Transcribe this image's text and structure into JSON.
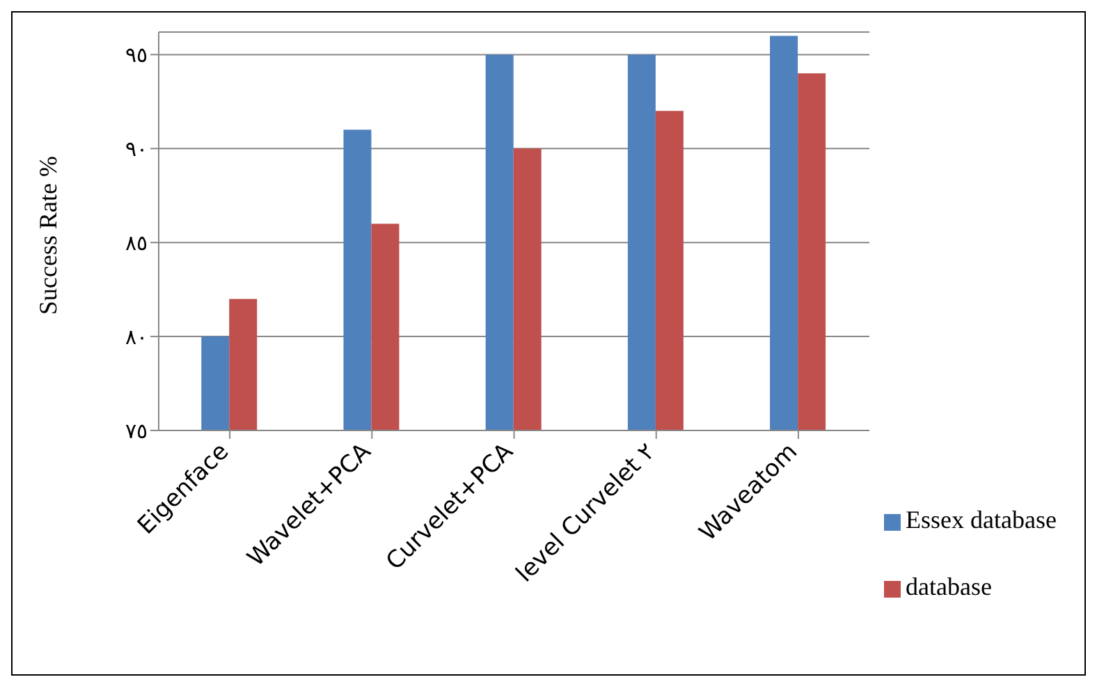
{
  "chart_data": {
    "type": "bar",
    "ylabel": "Success Rate %",
    "categories": [
      "Eigenface",
      "Wavelet+PCA",
      "Curvelet+PCA",
      "level Curvelet ٢",
      "Waveatom"
    ],
    "series": [
      {
        "name": "Essex database",
        "color": "#4f81bd",
        "values": [
          80,
          91,
          95,
          95,
          96
        ]
      },
      {
        "name": "database",
        "color": "#c0504d",
        "values": [
          82,
          86,
          90,
          92,
          94
        ]
      }
    ],
    "ylim": [
      75,
      96.2
    ],
    "yticks": [
      {
        "value": 75,
        "label": "٧٥"
      },
      {
        "value": 80,
        "label": "٨٠"
      },
      {
        "value": 85,
        "label": "٨٥"
      },
      {
        "value": 90,
        "label": "٩٠"
      },
      {
        "value": 95,
        "label": "٩٥"
      }
    ],
    "grid": "y",
    "legend": "right"
  }
}
